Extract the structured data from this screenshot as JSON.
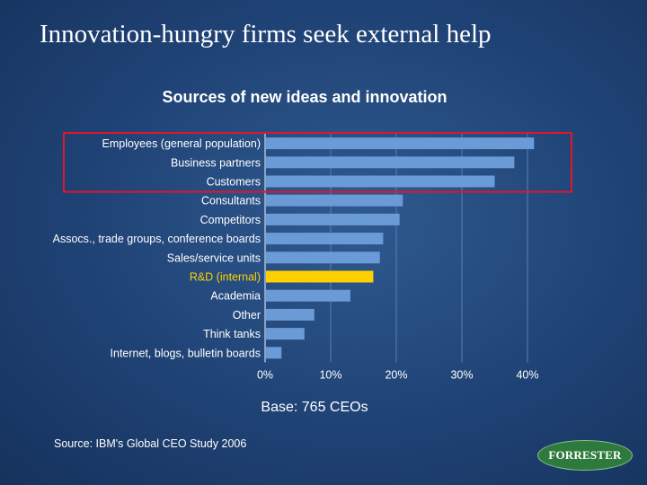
{
  "slide": {
    "title": "Innovation-hungry firms seek external help",
    "source": "Source: IBM's Global CEO Study 2006",
    "logo_text": "FORRESTER"
  },
  "colors": {
    "bar": "#6b9bd6",
    "highlight_bar": "#ffd000",
    "callout_border": "#e0162b"
  },
  "chart_data": {
    "type": "bar",
    "orientation": "horizontal",
    "title": "Sources of new ideas and innovation",
    "categories": [
      "Employees (general population)",
      "Business partners",
      "Customers",
      "Consultants",
      "Competitors",
      "Assocs., trade groups, conference boards",
      "Sales/service units",
      "R&D (internal)",
      "Academia",
      "Other",
      "Think tanks",
      "Internet, blogs, bulletin boards"
    ],
    "values": [
      41,
      38,
      35,
      21,
      20.5,
      18,
      17.5,
      16.5,
      13,
      7.5,
      6,
      2.5
    ],
    "unit": "%",
    "xlim": [
      0,
      40
    ],
    "xticks": [
      "0%",
      "10%",
      "20%",
      "30%",
      "40%"
    ],
    "grid": true,
    "highlight_category": "R&D (internal)",
    "callout_categories": [
      "Employees (general population)",
      "Business partners",
      "Customers"
    ],
    "note": "Base: 765 CEOs"
  }
}
